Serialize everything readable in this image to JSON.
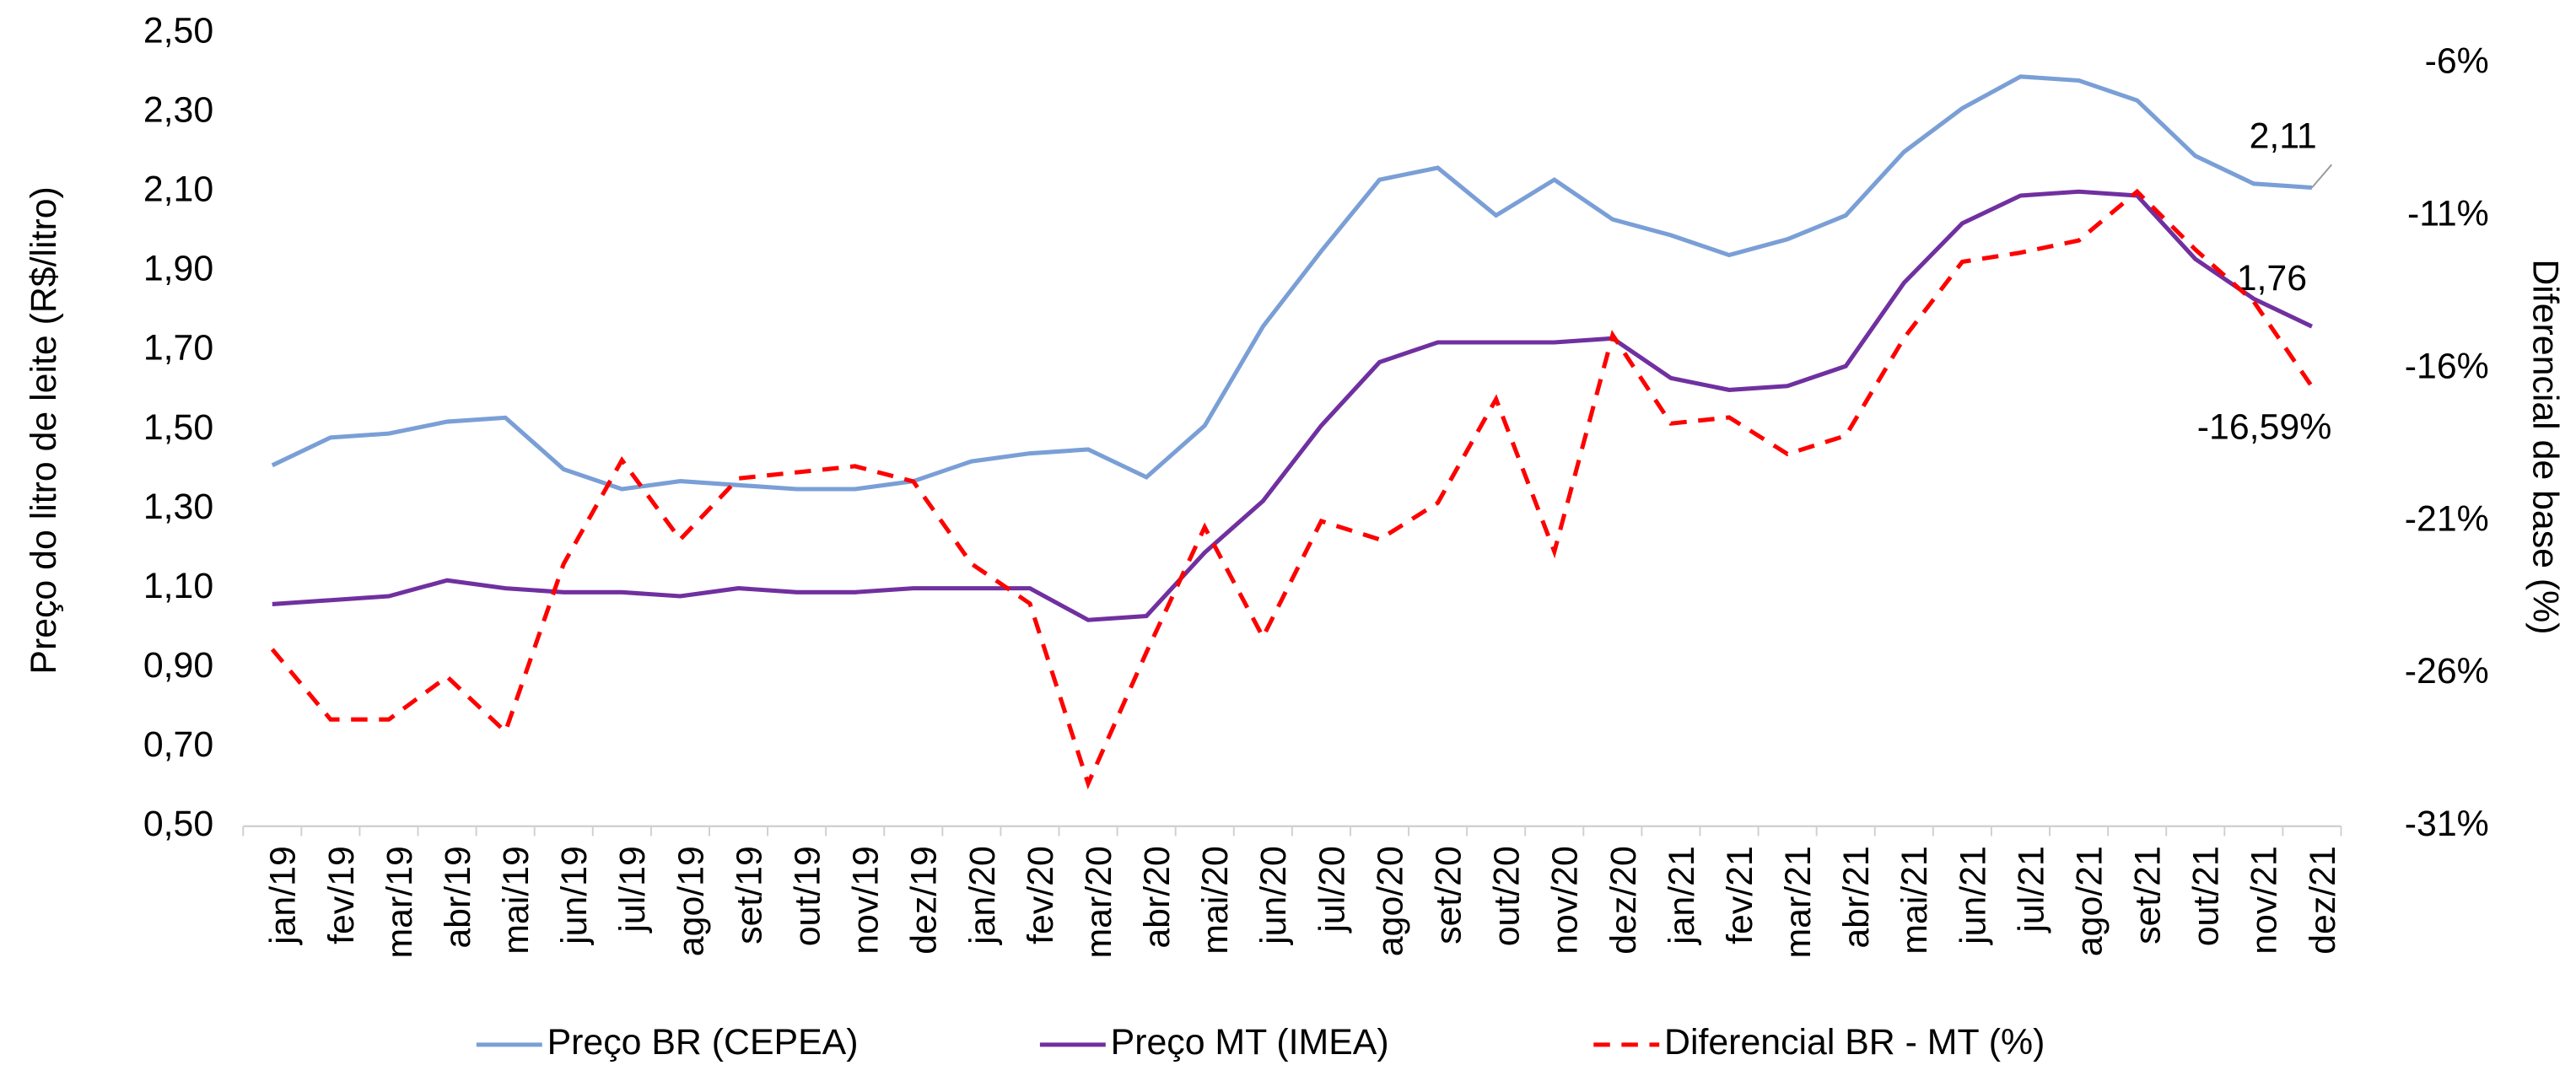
{
  "chart_data": {
    "type": "line",
    "y_label": "Preço do litro de leite (R$/litro)",
    "y2_label": "Diferencial de base (%)",
    "categories": [
      "jan/19",
      "fev/19",
      "mar/19",
      "abr/19",
      "mai/19",
      "jun/19",
      "jul/19",
      "ago/19",
      "set/19",
      "out/19",
      "nov/19",
      "dez/19",
      "jan/20",
      "fev/20",
      "mar/20",
      "abr/20",
      "mai/20",
      "jun/20",
      "jul/20",
      "ago/20",
      "set/20",
      "out/20",
      "nov/20",
      "dez/20",
      "jan/21",
      "fev/21",
      "mar/21",
      "abr/21",
      "mai/21",
      "jun/21",
      "jul/21",
      "ago/21",
      "set/21",
      "out/21",
      "nov/21",
      "dez/21"
    ],
    "ylim": [
      0.5,
      2.5
    ],
    "yticks": [
      {
        "value": 0.5,
        "label": "0,50"
      },
      {
        "value": 0.7,
        "label": "0,70"
      },
      {
        "value": 0.9,
        "label": "0,90"
      },
      {
        "value": 1.1,
        "label": "1,10"
      },
      {
        "value": 1.3,
        "label": "1,30"
      },
      {
        "value": 1.5,
        "label": "1,50"
      },
      {
        "value": 1.7,
        "label": "1,70"
      },
      {
        "value": 1.9,
        "label": "1,90"
      },
      {
        "value": 2.1,
        "label": "2,10"
      },
      {
        "value": 2.3,
        "label": "2,30"
      },
      {
        "value": 2.5,
        "label": "2,50"
      }
    ],
    "y2lim": [
      -31,
      -5
    ],
    "y2ticks": [
      {
        "value": -31,
        "label": "-31%"
      },
      {
        "value": -26,
        "label": "-26%"
      },
      {
        "value": -21,
        "label": "-21%"
      },
      {
        "value": -16,
        "label": "-16%"
      },
      {
        "value": -11,
        "label": "-11%"
      },
      {
        "value": -6,
        "label": "-6%"
      }
    ],
    "series": [
      {
        "name": "Preço BR (CEPEA)",
        "color": "#7a9fd6",
        "dashed": false,
        "values": [
          1.41,
          1.48,
          1.49,
          1.52,
          1.53,
          1.4,
          1.35,
          1.37,
          1.36,
          1.35,
          1.35,
          1.37,
          1.42,
          1.44,
          1.45,
          1.38,
          1.51,
          1.76,
          1.95,
          2.13,
          2.16,
          2.04,
          2.13,
          2.03,
          1.99,
          1.94,
          1.98,
          2.04,
          2.2,
          2.31,
          2.39,
          2.38,
          2.33,
          2.19,
          2.12,
          2.11
        ],
        "value_labels": [
          null,
          null,
          null,
          null,
          null,
          null,
          null,
          null,
          null,
          null,
          null,
          null,
          null,
          null,
          null,
          null,
          null,
          null,
          null,
          null,
          null,
          null,
          null,
          null,
          null,
          null,
          null,
          null,
          null,
          null,
          null,
          null,
          null,
          null,
          null,
          "2,11"
        ]
      },
      {
        "name": "Preço MT (IMEA)",
        "color": "#7030a0",
        "dashed": false,
        "values": [
          1.06,
          1.07,
          1.08,
          1.12,
          1.1,
          1.09,
          1.09,
          1.08,
          1.1,
          1.09,
          1.09,
          1.1,
          1.1,
          1.1,
          1.02,
          1.03,
          1.19,
          1.32,
          1.51,
          1.67,
          1.72,
          1.72,
          1.72,
          1.73,
          1.63,
          1.6,
          1.61,
          1.66,
          1.87,
          2.02,
          2.09,
          2.1,
          2.09,
          1.93,
          1.83,
          1.76
        ],
        "value_labels": [
          null,
          null,
          null,
          null,
          null,
          null,
          null,
          null,
          null,
          null,
          null,
          null,
          null,
          null,
          null,
          null,
          null,
          null,
          null,
          null,
          null,
          null,
          null,
          null,
          null,
          null,
          null,
          null,
          null,
          null,
          null,
          null,
          null,
          null,
          null,
          "1,76"
        ]
      },
      {
        "name": "Diferencial BR - MT (%)",
        "color": "#ff0000",
        "dashed": true,
        "axis": "y2",
        "values": [
          -25.2,
          -27.5,
          -27.5,
          -26.1,
          -27.9,
          -22.4,
          -19.0,
          -21.6,
          -19.6,
          -19.4,
          -19.2,
          -19.7,
          -22.4,
          -23.7,
          -29.6,
          -25.3,
          -21.2,
          -24.8,
          -21.0,
          -21.6,
          -20.4,
          -17.0,
          -22.0,
          -14.9,
          -17.8,
          -17.6,
          -18.8,
          -18.2,
          -15.0,
          -12.5,
          -12.2,
          -11.8,
          -10.2,
          -12.1,
          -13.8,
          -16.59
        ],
        "value_labels": [
          null,
          null,
          null,
          null,
          null,
          null,
          null,
          null,
          null,
          null,
          null,
          null,
          null,
          null,
          null,
          null,
          null,
          null,
          null,
          null,
          null,
          null,
          null,
          null,
          null,
          null,
          null,
          null,
          null,
          null,
          null,
          null,
          null,
          null,
          null,
          "-16,59%"
        ]
      }
    ]
  }
}
